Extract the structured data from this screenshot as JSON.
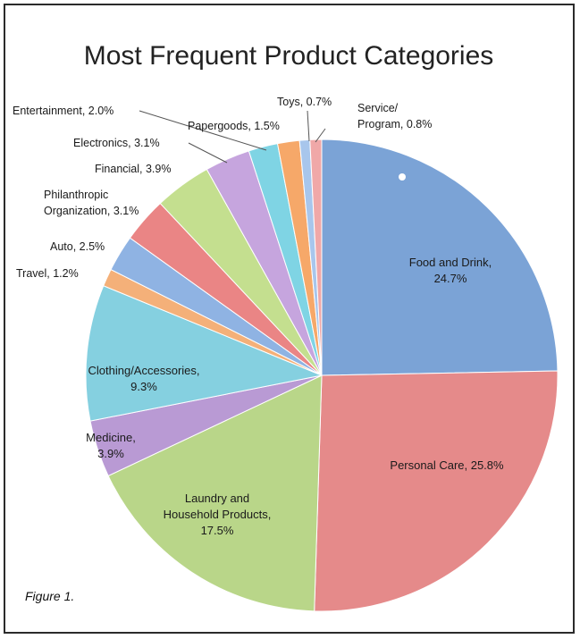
{
  "chart_data": {
    "type": "pie",
    "title": "Most Frequent Product Categories",
    "caption": "Figure 1.",
    "start_angle_deg": 0,
    "direction": "clockwise",
    "slices": [
      {
        "name": "Food and Drink",
        "value": 24.7,
        "label_lines": [
          "Food and Drink,",
          "24.7%"
        ],
        "color": "#7ba3d6"
      },
      {
        "name": "Personal Care",
        "value": 25.8,
        "label_lines": [
          "Personal Care, 25.8%"
        ],
        "color": "#e58a8a"
      },
      {
        "name": "Laundry and Household Products",
        "value": 17.5,
        "label_lines": [
          "Laundry and",
          "Household Products,",
          "17.5%"
        ],
        "color": "#b9d689"
      },
      {
        "name": "Medicine",
        "value": 3.9,
        "label_lines": [
          "Medicine,",
          "3.9%"
        ],
        "color": "#b99ad4"
      },
      {
        "name": "Clothing/Accessories",
        "value": 9.3,
        "label_lines": [
          "Clothing/Accessories,",
          "9.3%"
        ],
        "color": "#85d0e0"
      },
      {
        "name": "Travel",
        "value": 1.2,
        "label_lines": [
          "Travel, 1.2%"
        ],
        "color": "#f4b079"
      },
      {
        "name": "Auto",
        "value": 2.5,
        "label_lines": [
          "Auto, 2.5%"
        ],
        "color": "#8fb3e3"
      },
      {
        "name": "Philanthropic Organization",
        "value": 3.1,
        "label_lines": [
          "Philanthropic",
          "Organization, 3.1%"
        ],
        "color": "#ea8585"
      },
      {
        "name": "Financial",
        "value": 3.9,
        "label_lines": [
          "Financial, 3.9%"
        ],
        "color": "#c4df8f"
      },
      {
        "name": "Electronics",
        "value": 3.1,
        "label_lines": [
          "Electronics, 3.1%"
        ],
        "color": "#c6a5de"
      },
      {
        "name": "Entertainment",
        "value": 2.0,
        "label_lines": [
          "Entertainment, 2.0%"
        ],
        "color": "#7fd4e4"
      },
      {
        "name": "Papergoods",
        "value": 1.5,
        "label_lines": [
          "Papergoods, 1.5%"
        ],
        "color": "#f6a869"
      },
      {
        "name": "Toys",
        "value": 0.7,
        "label_lines": [
          "Toys, 0.7%"
        ],
        "color": "#a8c6ec"
      },
      {
        "name": "Service/Program",
        "value": 0.8,
        "label_lines": [
          "Service/",
          "Program, 0.8%"
        ],
        "color": "#f0a8a8"
      }
    ]
  }
}
